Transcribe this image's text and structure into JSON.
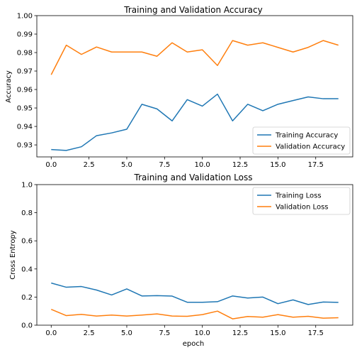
{
  "chart_data": [
    {
      "type": "line",
      "title": "Training and Validation Accuracy",
      "xlabel": "",
      "ylabel": "Accuracy",
      "xlim": [
        -0.95,
        19.95
      ],
      "ylim": [
        0.9235,
        1.0
      ],
      "xticks": [
        0.0,
        2.5,
        5.0,
        7.5,
        10.0,
        12.5,
        15.0,
        17.5
      ],
      "xtick_labels": [
        "0.0",
        "2.5",
        "5.0",
        "7.5",
        "10.0",
        "12.5",
        "15.0",
        "17.5"
      ],
      "yticks": [
        0.93,
        0.94,
        0.95,
        0.96,
        0.97,
        0.98,
        0.99,
        1.0
      ],
      "ytick_labels": [
        "0.93",
        "0.94",
        "0.95",
        "0.96",
        "0.97",
        "0.98",
        "0.99",
        "1.00"
      ],
      "legend_position": "lower-right",
      "grid": false,
      "x": [
        0,
        1,
        2,
        3,
        4,
        5,
        6,
        7,
        8,
        9,
        10,
        11,
        12,
        13,
        14,
        15,
        16,
        17,
        18,
        19
      ],
      "series": [
        {
          "name": "Training Accuracy",
          "color": "#1f77b4",
          "values": [
            0.9275,
            0.927,
            0.929,
            0.935,
            0.9365,
            0.9385,
            0.952,
            0.9495,
            0.943,
            0.9545,
            0.951,
            0.9575,
            0.943,
            0.952,
            0.9485,
            0.952,
            0.954,
            0.956,
            0.955,
            0.955
          ]
        },
        {
          "name": "Validation Accuracy",
          "color": "#ff7f0e",
          "values": [
            0.968,
            0.984,
            0.979,
            0.983,
            0.9803,
            0.9803,
            0.9803,
            0.978,
            0.9853,
            0.9803,
            0.9815,
            0.973,
            0.9865,
            0.984,
            0.9853,
            0.9828,
            0.9803,
            0.9828,
            0.9865,
            0.984
          ]
        }
      ]
    },
    {
      "type": "line",
      "title": "Training and Validation Loss",
      "xlabel": "epoch",
      "ylabel": "Cross Entropy",
      "xlim": [
        -0.95,
        19.95
      ],
      "ylim": [
        0.0,
        1.0
      ],
      "xticks": [
        0.0,
        2.5,
        5.0,
        7.5,
        10.0,
        12.5,
        15.0,
        17.5
      ],
      "xtick_labels": [
        "0.0",
        "2.5",
        "5.0",
        "7.5",
        "10.0",
        "12.5",
        "15.0",
        "17.5"
      ],
      "yticks": [
        0.0,
        0.2,
        0.4,
        0.6,
        0.8,
        1.0
      ],
      "ytick_labels": [
        "0.0",
        "0.2",
        "0.4",
        "0.6",
        "0.8",
        "1.0"
      ],
      "legend_position": "upper-right",
      "grid": false,
      "x": [
        0,
        1,
        2,
        3,
        4,
        5,
        6,
        7,
        8,
        9,
        10,
        11,
        12,
        13,
        14,
        15,
        16,
        17,
        18,
        19
      ],
      "series": [
        {
          "name": "Training Loss",
          "color": "#1f77b4",
          "values": [
            0.3,
            0.27,
            0.275,
            0.25,
            0.215,
            0.258,
            0.208,
            0.21,
            0.207,
            0.163,
            0.163,
            0.167,
            0.208,
            0.193,
            0.2,
            0.153,
            0.18,
            0.147,
            0.165,
            0.162
          ]
        },
        {
          "name": "Validation Loss",
          "color": "#ff7f0e",
          "values": [
            0.113,
            0.068,
            0.077,
            0.065,
            0.072,
            0.065,
            0.072,
            0.08,
            0.065,
            0.063,
            0.075,
            0.1,
            0.045,
            0.062,
            0.057,
            0.075,
            0.057,
            0.063,
            0.05,
            0.053
          ]
        }
      ]
    }
  ]
}
